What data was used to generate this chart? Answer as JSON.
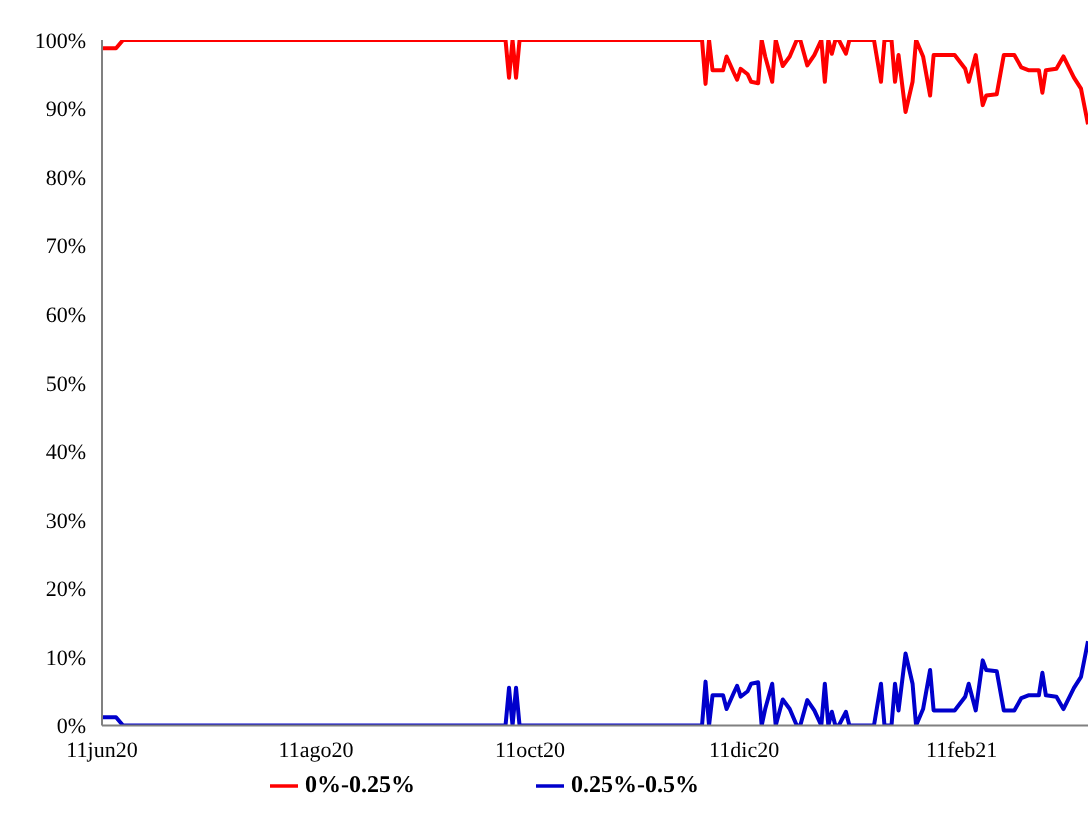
{
  "chart_data": {
    "type": "line",
    "xlim": [
      "2020-06-11",
      "2021-03-19"
    ],
    "xticks": [
      {
        "value": "2020-06-11",
        "label": "11jun20"
      },
      {
        "value": "2020-08-11",
        "label": "11ago20"
      },
      {
        "value": "2020-10-11",
        "label": "11oct20"
      },
      {
        "value": "2020-12-11",
        "label": "11dic20"
      },
      {
        "value": "2021-02-11",
        "label": "11feb21"
      }
    ],
    "ylim": [
      0,
      100
    ],
    "yticks": [
      {
        "value": 0,
        "label": "0%"
      },
      {
        "value": 10,
        "label": "10%"
      },
      {
        "value": 20,
        "label": "20%"
      },
      {
        "value": 30,
        "label": "30%"
      },
      {
        "value": 40,
        "label": "40%"
      },
      {
        "value": 50,
        "label": "50%"
      },
      {
        "value": 60,
        "label": "60%"
      },
      {
        "value": 70,
        "label": "70%"
      },
      {
        "value": 80,
        "label": "80%"
      },
      {
        "value": 90,
        "label": "90%"
      },
      {
        "value": 100,
        "label": "100%"
      }
    ],
    "x": [
      "2020-06-11",
      "2020-06-15",
      "2020-06-17",
      "2020-10-04",
      "2020-10-05",
      "2020-10-06",
      "2020-10-07",
      "2020-10-08",
      "2020-11-29",
      "2020-11-30",
      "2020-12-01",
      "2020-12-02",
      "2020-12-05",
      "2020-12-06",
      "2020-12-08",
      "2020-12-09",
      "2020-12-10",
      "2020-12-12",
      "2020-12-13",
      "2020-12-15",
      "2020-12-16",
      "2020-12-17",
      "2020-12-19",
      "2020-12-20",
      "2020-12-22",
      "2020-12-24",
      "2020-12-26",
      "2020-12-27",
      "2020-12-29",
      "2020-12-31",
      "2021-01-02",
      "2021-01-03",
      "2021-01-04",
      "2021-01-05",
      "2021-01-06",
      "2021-01-07",
      "2021-01-09",
      "2021-01-10",
      "2021-01-17",
      "2021-01-19",
      "2021-01-20",
      "2021-01-22",
      "2021-01-23",
      "2021-01-24",
      "2021-01-26",
      "2021-01-28",
      "2021-01-29",
      "2021-01-31",
      "2021-02-02",
      "2021-02-03",
      "2021-02-09",
      "2021-02-12",
      "2021-02-13",
      "2021-02-15",
      "2021-02-17",
      "2021-02-18",
      "2021-02-21",
      "2021-02-23",
      "2021-02-26",
      "2021-02-28",
      "2021-03-02",
      "2021-03-05",
      "2021-03-06",
      "2021-03-07",
      "2021-03-10",
      "2021-03-12",
      "2021-03-15",
      "2021-03-17",
      "2021-03-19"
    ],
    "series": [
      {
        "name": "0%-0.25%",
        "color": "#ff0000",
        "values": [
          98.8,
          98.8,
          100,
          100,
          94.5,
          100,
          94.5,
          100,
          100,
          93.6,
          100,
          95.6,
          95.6,
          97.6,
          95.3,
          94.2,
          95.8,
          95,
          93.9,
          93.7,
          100,
          97.6,
          93.9,
          100,
          96.2,
          97.6,
          100,
          100,
          96.3,
          97.8,
          100,
          93.9,
          100,
          98,
          100,
          100,
          98,
          100,
          100,
          93.9,
          100,
          100,
          93.9,
          97.8,
          89.5,
          93.9,
          100,
          97.6,
          91.9,
          97.8,
          97.8,
          95.8,
          93.9,
          97.8,
          90.5,
          91.9,
          92.1,
          97.8,
          97.8,
          96,
          95.6,
          95.6,
          92.3,
          95.6,
          95.8,
          97.6,
          94.5,
          92.9,
          87.7
        ]
      },
      {
        "name": "0.25%-0.5%",
        "color": "#0000cc",
        "values": [
          1.2,
          1.2,
          0,
          0,
          5.5,
          0,
          5.5,
          0,
          0,
          6.4,
          0,
          4.4,
          4.4,
          2.4,
          4.7,
          5.8,
          4.2,
          5,
          6.1,
          6.3,
          0,
          2.4,
          6.1,
          0,
          3.8,
          2.4,
          0,
          0,
          3.7,
          2.2,
          0,
          6.1,
          0,
          2,
          0,
          0,
          2,
          0,
          0,
          6.1,
          0,
          0,
          6.1,
          2.2,
          10.5,
          6.1,
          0,
          2.4,
          8.1,
          2.2,
          2.2,
          4.2,
          6.1,
          2.2,
          9.5,
          8.1,
          7.9,
          2.2,
          2.2,
          4,
          4.4,
          4.4,
          7.7,
          4.4,
          4.2,
          2.4,
          5.5,
          7.1,
          12.3
        ]
      }
    ],
    "legend": "bottom",
    "marker": "none",
    "line_style": "solid"
  }
}
